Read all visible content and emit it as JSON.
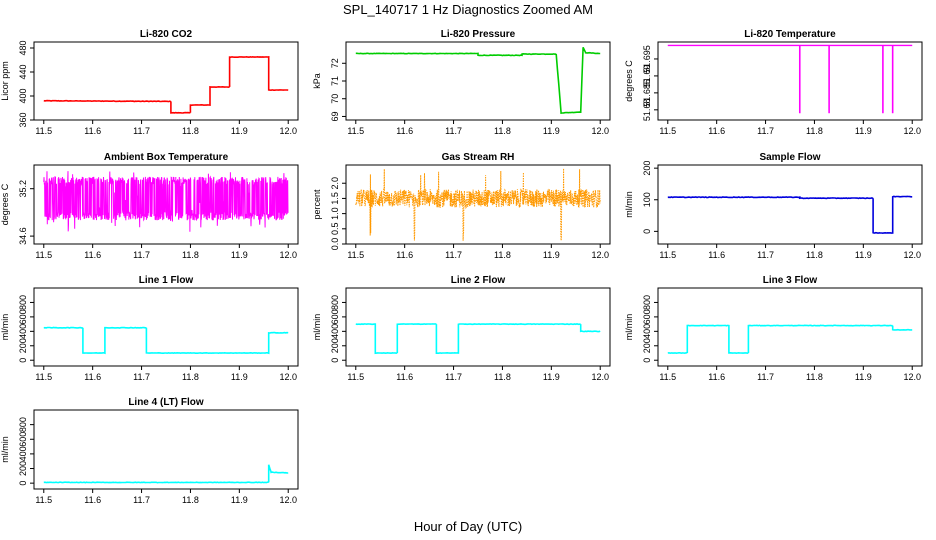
{
  "figure": {
    "title": "SPL_140717  1 Hz Diagnostics Zoomed AM",
    "xlabel": "Hour of Day (UTC)"
  },
  "chart_data": [
    {
      "type": "line",
      "title": "Li-820 CO2",
      "ylabel": "Licor ppm",
      "color": "#ff0000",
      "xlim": [
        11.48,
        12.02
      ],
      "ylim": [
        360,
        490
      ],
      "xticks": [
        "11.5",
        "11.6",
        "11.7",
        "11.8",
        "11.9",
        "12.0"
      ],
      "yticks": [
        360,
        400,
        440,
        480
      ],
      "x": [
        11.5,
        11.76,
        11.76,
        11.8,
        11.8,
        11.84,
        11.84,
        11.88,
        11.88,
        11.96,
        11.96,
        12.0
      ],
      "y": [
        392,
        391,
        372,
        372,
        385,
        385,
        415,
        415,
        465,
        465,
        410,
        410
      ]
    },
    {
      "type": "line",
      "title": "Li-820 Pressure",
      "ylabel": "kPa",
      "color": "#00cc00",
      "xlim": [
        11.48,
        12.02
      ],
      "ylim": [
        68.8,
        73.2
      ],
      "xticks": [
        "11.5",
        "11.6",
        "11.7",
        "11.8",
        "11.9",
        "12.0"
      ],
      "yticks": [
        69,
        70,
        71,
        72
      ],
      "x": [
        11.5,
        11.75,
        11.75,
        11.84,
        11.84,
        11.91,
        11.92,
        11.96,
        11.965,
        11.97,
        12.0
      ],
      "y": [
        72.55,
        72.55,
        72.45,
        72.45,
        72.52,
        72.52,
        69.2,
        69.25,
        72.9,
        72.6,
        72.55
      ]
    },
    {
      "type": "line",
      "title": "Li-820 Temperature",
      "ylabel": "degrees C",
      "color": "#ff00ff",
      "xlim": [
        11.48,
        12.02
      ],
      "ylim": [
        51.677,
        51.7
      ],
      "xticks": [
        "11.5",
        "11.6",
        "11.7",
        "11.8",
        "11.9",
        "12.0"
      ],
      "yticks": [
        51.68,
        51.685,
        51.69,
        51.695
      ],
      "baseline": 51.699,
      "dips_x": [
        11.77,
        11.83,
        11.94,
        11.96
      ],
      "dip_y": 51.679
    },
    {
      "type": "line",
      "title": "Ambient Box Temperature",
      "ylabel": "degrees C",
      "color": "#ff00ff",
      "xlim": [
        11.48,
        12.02
      ],
      "ylim": [
        34.5,
        35.5
      ],
      "xticks": [
        "11.5",
        "11.6",
        "11.7",
        "11.8",
        "11.9",
        "12.0"
      ],
      "yticks": [
        34.6,
        35.2
      ],
      "noise_range": [
        34.65,
        35.45
      ],
      "typical": 35.0
    },
    {
      "type": "line",
      "title": "Gas Stream RH",
      "ylabel": "percent",
      "color": "#ff9900",
      "xlim": [
        11.48,
        12.02
      ],
      "ylim": [
        0,
        2.6
      ],
      "xticks": [
        "11.5",
        "11.6",
        "11.7",
        "11.8",
        "11.9",
        "12.0"
      ],
      "yticks": [
        0.0,
        0.5,
        1.0,
        1.5,
        2.0
      ],
      "mean": 1.5,
      "spread": 0.3
    },
    {
      "type": "line",
      "title": "Sample Flow",
      "ylabel": "ml/min",
      "color": "#0000dd",
      "xlim": [
        11.48,
        12.02
      ],
      "ylim": [
        -40,
        210
      ],
      "xticks": [
        "11.5",
        "11.6",
        "11.7",
        "11.8",
        "11.9",
        "12.0"
      ],
      "yticks": [
        0,
        100,
        200
      ],
      "x": [
        11.5,
        11.77,
        11.77,
        11.92,
        11.92,
        11.96,
        11.96,
        12.0
      ],
      "y": [
        108,
        108,
        105,
        105,
        -5,
        -5,
        110,
        110
      ]
    },
    {
      "type": "line",
      "title": "Line 1 Flow",
      "ylabel": "ml/min",
      "color": "#00ffff",
      "xlim": [
        11.48,
        12.02
      ],
      "ylim": [
        -80,
        1000
      ],
      "xticks": [
        "11.5",
        "11.6",
        "11.7",
        "11.8",
        "11.9",
        "12.0"
      ],
      "yticks": [
        0,
        200,
        400,
        600,
        800
      ],
      "x": [
        11.5,
        11.58,
        11.58,
        11.625,
        11.625,
        11.71,
        11.71,
        11.96,
        11.96,
        12.0
      ],
      "y": [
        450,
        450,
        100,
        100,
        450,
        450,
        100,
        100,
        380,
        380
      ]
    },
    {
      "type": "line",
      "title": "Line 2 Flow",
      "ylabel": "ml/min",
      "color": "#00ffff",
      "xlim": [
        11.48,
        12.02
      ],
      "ylim": [
        -80,
        1000
      ],
      "xticks": [
        "11.5",
        "11.6",
        "11.7",
        "11.8",
        "11.9",
        "12.0"
      ],
      "yticks": [
        0,
        200,
        400,
        600,
        800
      ],
      "x": [
        11.5,
        11.54,
        11.54,
        11.585,
        11.585,
        11.665,
        11.665,
        11.71,
        11.71,
        11.96,
        11.96,
        12.0
      ],
      "y": [
        500,
        500,
        100,
        100,
        500,
        500,
        100,
        100,
        500,
        500,
        400,
        400
      ]
    },
    {
      "type": "line",
      "title": "Line 3 Flow",
      "ylabel": "ml/min",
      "color": "#00ffff",
      "xlim": [
        11.48,
        12.02
      ],
      "ylim": [
        -80,
        1000
      ],
      "xticks": [
        "11.5",
        "11.6",
        "11.7",
        "11.8",
        "11.9",
        "12.0"
      ],
      "yticks": [
        0,
        200,
        400,
        600,
        800
      ],
      "x": [
        11.5,
        11.54,
        11.54,
        11.625,
        11.625,
        11.665,
        11.665,
        11.96,
        11.96,
        12.0
      ],
      "y": [
        100,
        100,
        480,
        480,
        100,
        100,
        480,
        480,
        420,
        420
      ]
    },
    {
      "type": "line",
      "title": "Line 4 (LT) Flow",
      "ylabel": "ml/min",
      "color": "#00ffff",
      "xlim": [
        11.48,
        12.02
      ],
      "ylim": [
        -80,
        1000
      ],
      "xticks": [
        "11.5",
        "11.6",
        "11.7",
        "11.8",
        "11.9",
        "12.0"
      ],
      "yticks": [
        0,
        200,
        400,
        600,
        800
      ],
      "x": [
        11.5,
        11.96,
        11.96,
        11.965,
        12.0
      ],
      "y": [
        10,
        10,
        250,
        150,
        140
      ]
    }
  ]
}
